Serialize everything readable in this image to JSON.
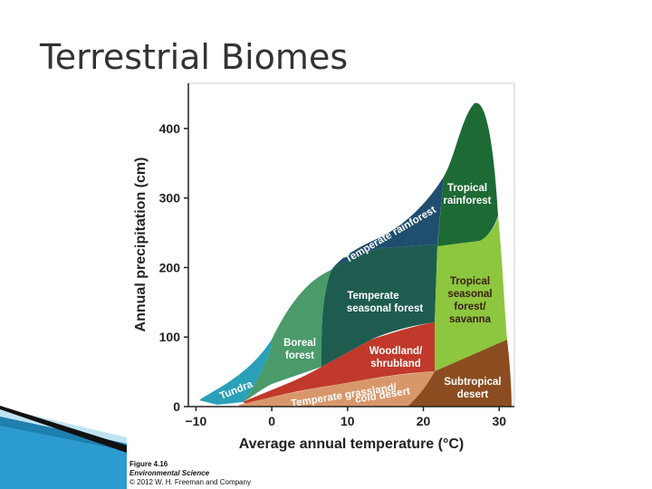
{
  "title": "Terrestrial Biomes",
  "chart_data": {
    "type": "region",
    "x_label": "Average annual temperature (°C)",
    "y_label": "Annual precipitation (cm)",
    "xlim": [
      -11,
      32
    ],
    "ylim": [
      0,
      465
    ],
    "xticks": [
      {
        "value": -10,
        "label": "−10"
      },
      0,
      10,
      20,
      30
    ],
    "yticks": [
      0,
      100,
      200,
      300,
      400
    ],
    "regions": [
      [
        "Tundra"
      ],
      [
        "Boreal",
        "forest"
      ],
      [
        "Temperate rainforest"
      ],
      [
        "Temperate",
        "seasonal forest"
      ],
      [
        "Tropical",
        "rainforest"
      ],
      [
        "Tropical",
        "seasonal",
        "forest/",
        "savanna"
      ],
      [
        "Woodland/",
        "shrubland"
      ],
      [
        "Temperate grassland/",
        "cold desert"
      ],
      [
        "Subtropical",
        "desert"
      ]
    ]
  },
  "caption": [
    "Figure 4.16",
    "Environmental Science",
    "© 2012 W. H. Freeman and Company"
  ]
}
